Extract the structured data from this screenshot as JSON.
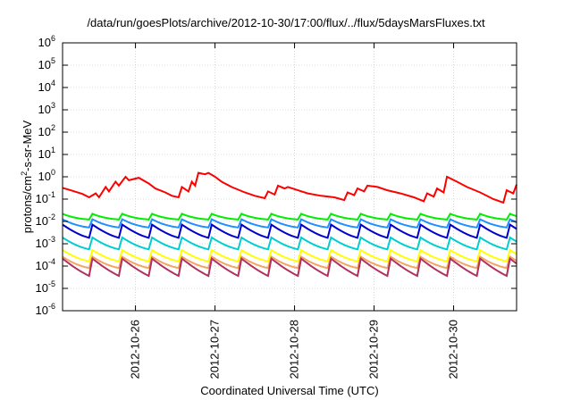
{
  "chart_data": {
    "type": "line",
    "title": "/data/run/goesPlots/archive/2012-10-30/17:00/flux/../flux/5daysMarsFluxes.txt",
    "xlabel": "Coordinated Universal Time (UTC)",
    "ylabel": {
      "prefix": "protons/cm",
      "sup": "2",
      "suffix": "-s-sr-MeV"
    },
    "y_scale": "log",
    "ylim": [
      1e-06,
      1000000.0
    ],
    "y_ticks": [
      {
        "value": 1e-06,
        "base": "10",
        "exp": "-6"
      },
      {
        "value": 1e-05,
        "base": "10",
        "exp": "-5"
      },
      {
        "value": 0.0001,
        "base": "10",
        "exp": "-4"
      },
      {
        "value": 0.001,
        "base": "10",
        "exp": "-3"
      },
      {
        "value": 0.01,
        "base": "10",
        "exp": "-2"
      },
      {
        "value": 0.1,
        "base": "10",
        "exp": "-1"
      },
      {
        "value": 1.0,
        "base": "10",
        "exp": "0"
      },
      {
        "value": 10.0,
        "base": "10",
        "exp": "1"
      },
      {
        "value": 100.0,
        "base": "10",
        "exp": "2"
      },
      {
        "value": 1000.0,
        "base": "10",
        "exp": "3"
      },
      {
        "value": 10000.0,
        "base": "10",
        "exp": "4"
      },
      {
        "value": 100000.0,
        "base": "10",
        "exp": "5"
      },
      {
        "value": 1000000.0,
        "base": "10",
        "exp": "6"
      }
    ],
    "x_range": [
      "2012-10-25T02:00",
      "2012-10-30T19:00"
    ],
    "x_ticks": [
      "2012-10-26",
      "2012-10-27",
      "2012-10-28",
      "2012-10-29",
      "2012-10-30"
    ],
    "grid": true,
    "series": [
      {
        "color": "#ff0000",
        "x": [
          "2012-10-25T02:00",
          "2012-10-25T04:00",
          "2012-10-25T08:00",
          "2012-10-25T10:00",
          "2012-10-25T12:00",
          "2012-10-25T13:00",
          "2012-10-25T15:00",
          "2012-10-25T16:00",
          "2012-10-25T18:00",
          "2012-10-25T19:00",
          "2012-10-25T21:00",
          "2012-10-25T22:00",
          "2012-10-26T01:00",
          "2012-10-26T04:00",
          "2012-10-26T06:00",
          "2012-10-26T09:00",
          "2012-10-26T11:00",
          "2012-10-26T13:00",
          "2012-10-26T14:00",
          "2012-10-26T16:00",
          "2012-10-26T17:00",
          "2012-10-26T18:00",
          "2012-10-26T19:00",
          "2012-10-26T21:00",
          "2012-10-26T22:00",
          "2012-10-27T00:00",
          "2012-10-27T02:00",
          "2012-10-27T05:00",
          "2012-10-27T09:00",
          "2012-10-27T12:00",
          "2012-10-27T15:00",
          "2012-10-27T16:00",
          "2012-10-27T18:00",
          "2012-10-27T19:00",
          "2012-10-27T21:00",
          "2012-10-27T22:00",
          "2012-10-28T01:00",
          "2012-10-28T04:00",
          "2012-10-28T08:00",
          "2012-10-28T12:00",
          "2012-10-28T15:00",
          "2012-10-28T16:00",
          "2012-10-28T18:00",
          "2012-10-28T19:00",
          "2012-10-28T21:00",
          "2012-10-28T22:00",
          "2012-10-29T01:00",
          "2012-10-29T04:00",
          "2012-10-29T08:00",
          "2012-10-29T12:00",
          "2012-10-29T15:00",
          "2012-10-29T16:00",
          "2012-10-29T18:00",
          "2012-10-29T19:00",
          "2012-10-29T21:00",
          "2012-10-29T22:00",
          "2012-10-30T01:00",
          "2012-10-30T04:00",
          "2012-10-30T08:00",
          "2012-10-30T12:00",
          "2012-10-30T15:00",
          "2012-10-30T16:00",
          "2012-10-30T18:00",
          "2012-10-30T19:00"
        ],
        "y": [
          0.32,
          0.26,
          0.17,
          0.12,
          0.18,
          0.12,
          0.35,
          0.22,
          0.6,
          0.4,
          1.0,
          0.7,
          0.9,
          0.5,
          0.3,
          0.2,
          0.14,
          0.12,
          0.35,
          0.22,
          0.6,
          0.4,
          1.5,
          1.3,
          1.5,
          1.0,
          0.6,
          0.35,
          0.2,
          0.14,
          0.11,
          0.22,
          0.16,
          0.4,
          0.3,
          0.35,
          0.25,
          0.18,
          0.14,
          0.12,
          0.09,
          0.2,
          0.15,
          0.3,
          0.22,
          0.4,
          0.35,
          0.25,
          0.18,
          0.12,
          0.08,
          0.18,
          0.13,
          0.3,
          0.2,
          1.0,
          0.6,
          0.35,
          0.2,
          0.1,
          0.07,
          0.25,
          0.18,
          0.45
        ]
      },
      {
        "color": "#00ee00",
        "base": 0.011,
        "amp": 0.011,
        "period_h": 9
      },
      {
        "color": "#1e90ff",
        "base": 0.0045,
        "amp": 0.008,
        "period_h": 9
      },
      {
        "color": "#0000cc",
        "base": 0.0012,
        "amp": 0.006,
        "period_h": 9
      },
      {
        "color": "#00ced1",
        "base": 0.0004,
        "amp": 0.0015,
        "period_h": 9
      },
      {
        "color": "#ffff00",
        "base": 0.00012,
        "amp": 0.0004,
        "period_h": 9
      },
      {
        "color": "#f4a460",
        "base": 6e-05,
        "amp": 0.0002,
        "period_h": 9
      },
      {
        "color": "#b03060",
        "base": 1.5e-05,
        "amp": 0.0002,
        "period_h": 9
      }
    ]
  }
}
